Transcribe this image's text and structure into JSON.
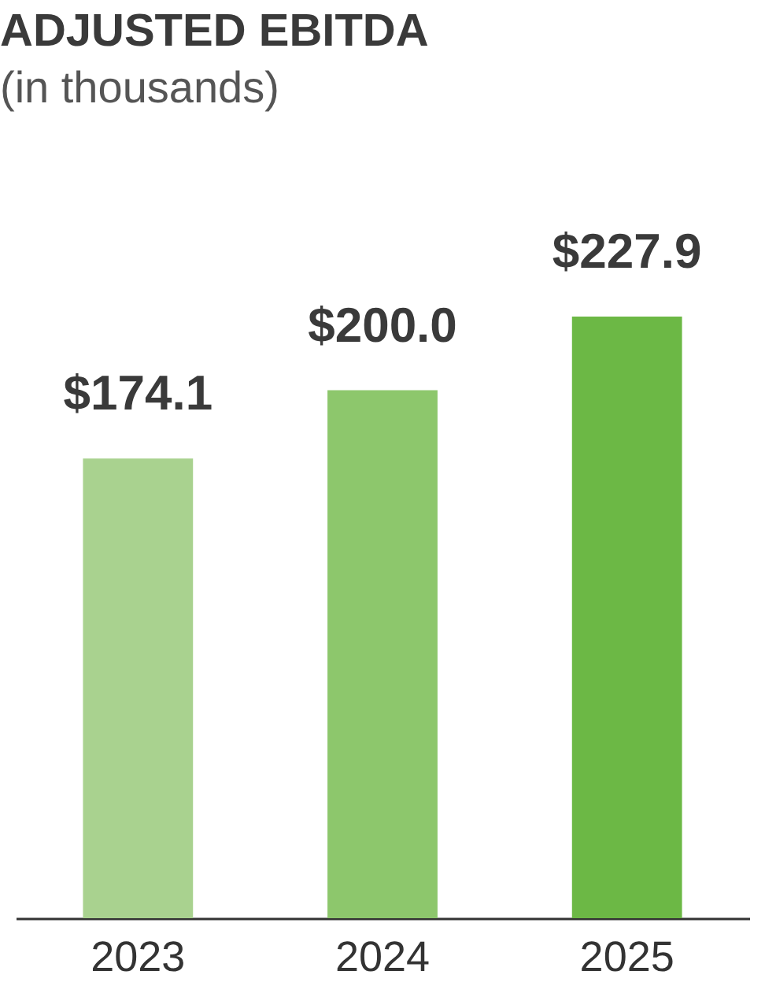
{
  "chart_data": {
    "type": "bar",
    "title": "ADJUSTED EBITDA",
    "subtitle": "(in thousands)",
    "categories": [
      "2023",
      "2024",
      "2025"
    ],
    "values": [
      174.1,
      200.0,
      227.9
    ],
    "value_labels": [
      "$174.1",
      "$200.0",
      "$227.9"
    ],
    "colors": [
      "#a9d28f",
      "#8dc76c",
      "#6cb845"
    ]
  }
}
